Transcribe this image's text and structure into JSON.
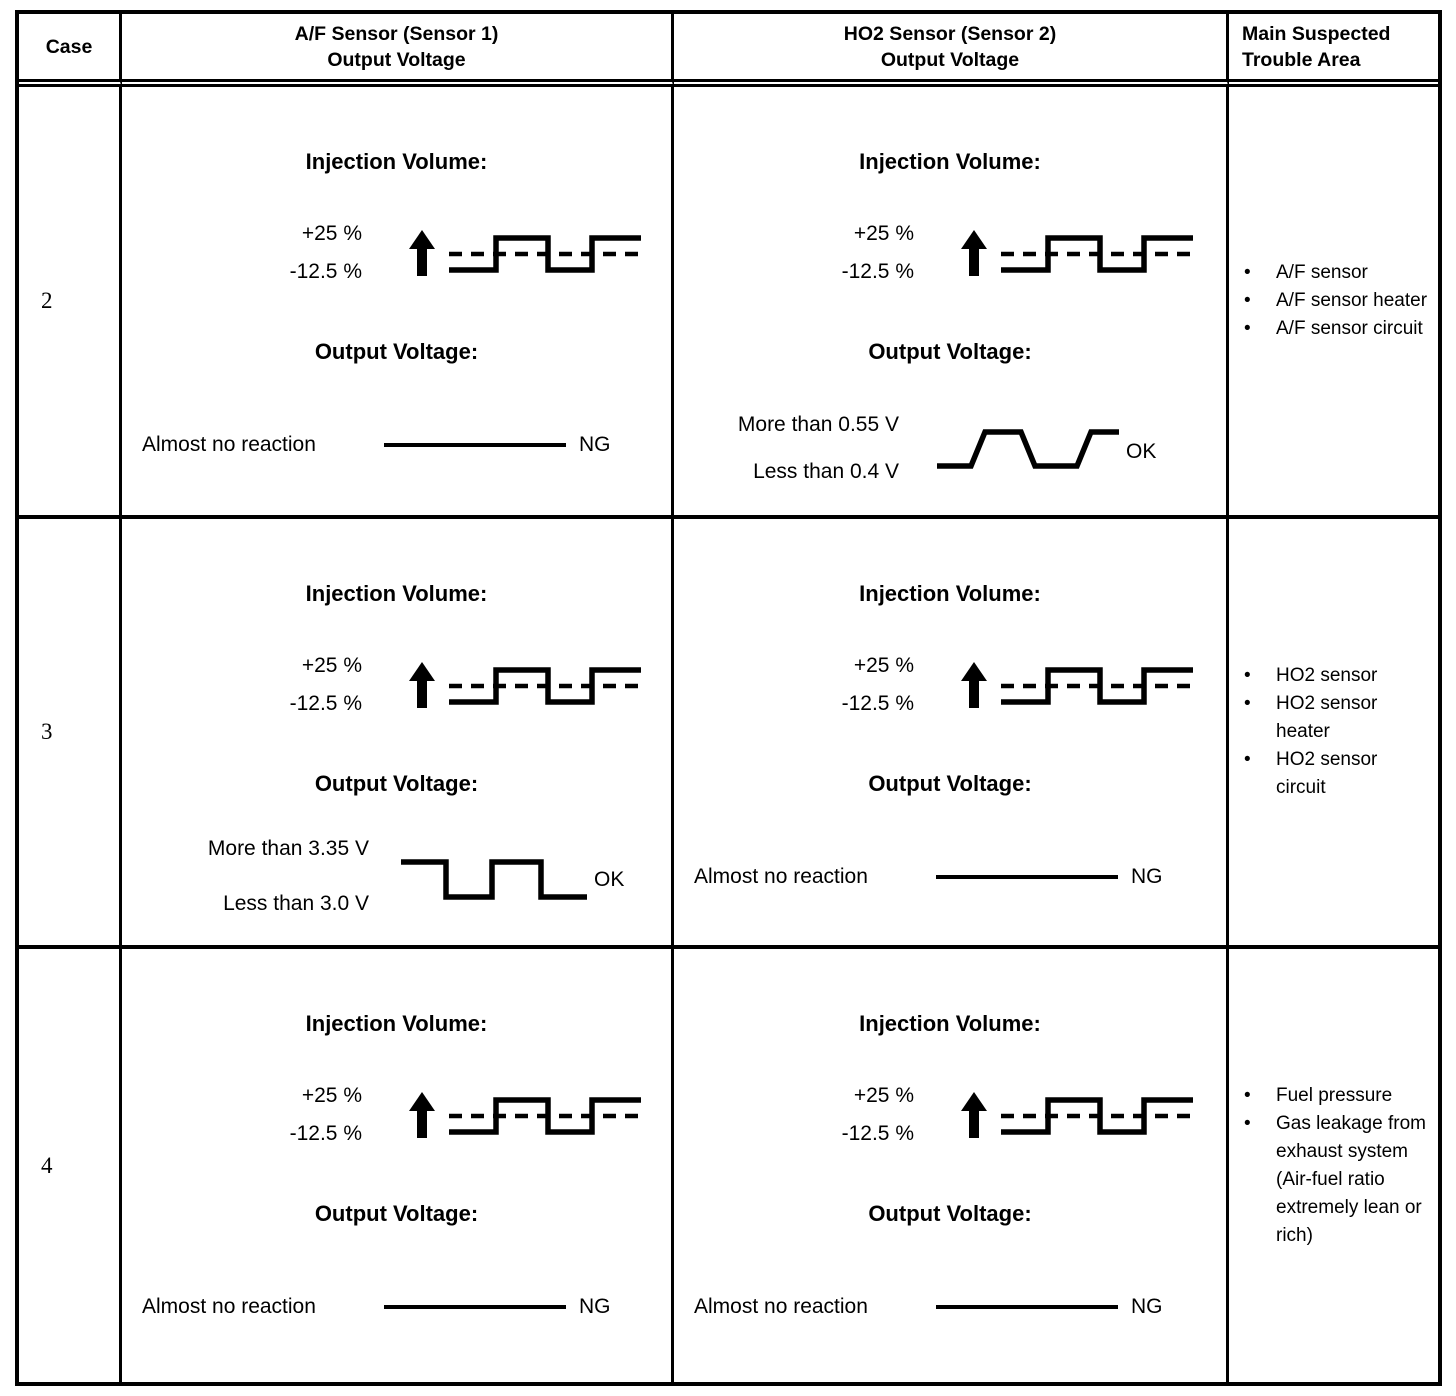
{
  "page": {
    "background": "#ffffff",
    "ink": "#000000"
  },
  "table": {
    "headers": {
      "case": "Case",
      "af_line1": "A/F Sensor (Sensor 1)",
      "af_line2": "Output Voltage",
      "ho2_line1": "HO2 Sensor (Sensor 2)",
      "ho2_line2": "Output Voltage",
      "trouble_line1": "Main Suspected",
      "trouble_line2": "Trouble Area"
    },
    "labels": {
      "injection": "Injection Volume:",
      "output": "Output Voltage:",
      "plus": "+25 %",
      "minus": "-12.5 %"
    },
    "rows": [
      {
        "case": "2",
        "af": {
          "result_text": "Almost no reaction",
          "verdict": "NG"
        },
        "ho2": {
          "high": "More than 0.55 V",
          "low": "Less than 0.4 V",
          "verdict": "OK"
        },
        "trouble": [
          "A/F sensor",
          "A/F sensor heater",
          "A/F sensor circuit"
        ]
      },
      {
        "case": "3",
        "af": {
          "high": "More than 3.35 V",
          "low": "Less than 3.0 V",
          "verdict": "OK"
        },
        "ho2": {
          "result_text": "Almost no reaction",
          "verdict": "NG"
        },
        "trouble": [
          "HO2 sensor",
          "HO2 sensor heater",
          "HO2 sensor circuit"
        ]
      },
      {
        "case": "4",
        "af": {
          "result_text": "Almost no reaction",
          "verdict": "NG"
        },
        "ho2": {
          "result_text": "Almost no reaction",
          "verdict": "NG"
        },
        "trouble": [
          "Fuel pressure",
          "Gas leakage from exhaust system (Air-fuel ratio extremely lean or rich)"
        ]
      }
    ]
  }
}
